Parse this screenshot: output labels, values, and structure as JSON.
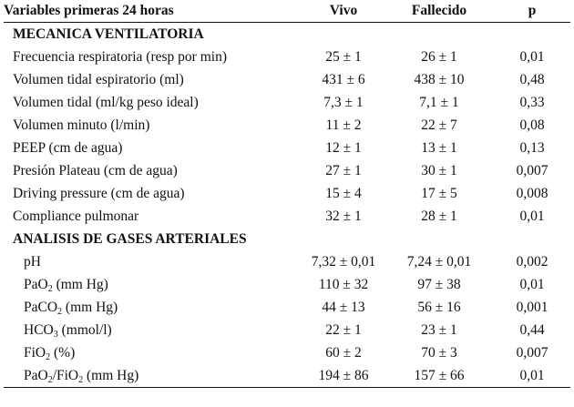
{
  "header": {
    "variables": "Variables primeras 24 horas",
    "vivo": "Vivo",
    "fallecido": "Fallecido",
    "p": "p"
  },
  "sections": {
    "mecanica": "MECANICA VENTILATORIA",
    "gases": "ANALISIS DE GASES ARTERIALES"
  },
  "mecanica_rows": [
    {
      "label": "Frecuencia respiratoria (resp por min)",
      "vivo": "25 ± 1",
      "fallecido": "26 ± 1",
      "p": "0,01"
    },
    {
      "label": "Volumen tidal espiratorio (ml)",
      "vivo": "431 ± 6",
      "fallecido": "438 ± 10",
      "p": "0,48"
    },
    {
      "label": "Volumen tidal (ml/kg peso ideal)",
      "vivo": "7,3 ± 1",
      "fallecido": "7,1 ± 1",
      "p": "0,33"
    },
    {
      "label": "Volumen minuto (l/min)",
      "vivo": "11 ± 2",
      "fallecido": "22 ± 7",
      "p": "0,08"
    },
    {
      "label": "PEEP (cm de agua)",
      "vivo": "12 ± 1",
      "fallecido": "13 ± 1",
      "p": "0,13"
    },
    {
      "label": "Presión Plateau (cm de agua)",
      "vivo": "27 ± 1",
      "fallecido": "30 ± 1",
      "p": "0,007"
    },
    {
      "label": "Driving pressure (cm de agua)",
      "vivo": "15 ± 4",
      "fallecido": "17 ± 5",
      "p": "0,008"
    },
    {
      "label": "Compliance pulmonar",
      "vivo": "32 ± 1",
      "fallecido": "28 ± 1",
      "p": "0,01"
    }
  ],
  "gases_rows": [
    {
      "label_pre": "pH",
      "sub": "",
      "label_post": "",
      "vivo": "7,32 ± 0,01",
      "fallecido": "7,24 ± 0,01",
      "p": "0,002"
    },
    {
      "label_pre": "PaO",
      "sub": "2",
      "label_post": " (mm Hg)",
      "vivo": "110 ± 32",
      "fallecido": "97 ± 38",
      "p": "0,01"
    },
    {
      "label_pre": "PaCO",
      "sub": "2",
      "label_post": " (mm Hg)",
      "vivo": "44 ± 13",
      "fallecido": "56 ± 16",
      "p": "0,001"
    },
    {
      "label_pre": "HCO",
      "sub": "3",
      "label_post": " (mmol/l)",
      "vivo": "22 ± 1",
      "fallecido": "23 ± 1",
      "p": "0,44"
    },
    {
      "label_pre": "FiO",
      "sub": "2",
      "label_post": " (%)",
      "vivo": "60 ± 2",
      "fallecido": "70 ± 3",
      "p": "0,007"
    },
    {
      "label_pre": "PaO",
      "sub": "2",
      "label_mid": "/FiO",
      "sub2": "2",
      "label_post": " (mm Hg)",
      "vivo": "194 ± 86",
      "fallecido": "157 ± 66",
      "p": "0,01"
    }
  ]
}
